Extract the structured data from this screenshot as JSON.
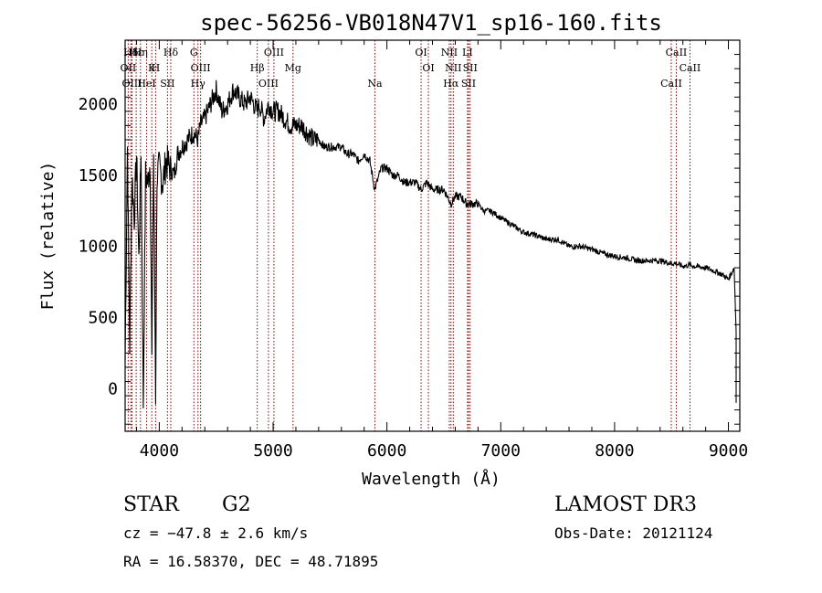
{
  "chart_data": {
    "type": "line",
    "title": "spec-56256-VB018N47V1_sp16-160.fits",
    "xlabel": "Wavelength (Å)",
    "ylabel": "Flux (relative)",
    "xlim": [
      3700,
      9100
    ],
    "ylim": [
      -300,
      2450
    ],
    "x_ticks": [
      4000,
      5000,
      6000,
      7000,
      8000,
      9000
    ],
    "y_ticks": [
      0,
      500,
      1000,
      1500,
      2000
    ],
    "grid": false,
    "series": [
      {
        "name": "flux",
        "x": [
          3700,
          3720,
          3740,
          3760,
          3780,
          3800,
          3820,
          3840,
          3860,
          3880,
          3900,
          3920,
          3935,
          3950,
          3968,
          3980,
          4000,
          4030,
          4060,
          4101,
          4130,
          4160,
          4200,
          4250,
          4300,
          4340,
          4360,
          4400,
          4450,
          4500,
          4550,
          4600,
          4650,
          4700,
          4750,
          4800,
          4861,
          4880,
          4920,
          4960,
          5000,
          5050,
          5100,
          5150,
          5200,
          5250,
          5300,
          5350,
          5400,
          5450,
          5500,
          5550,
          5600,
          5650,
          5700,
          5750,
          5800,
          5850,
          5893,
          5950,
          6000,
          6050,
          6100,
          6150,
          6200,
          6250,
          6300,
          6350,
          6400,
          6450,
          6500,
          6563,
          6600,
          6650,
          6700,
          6750,
          6800,
          6850,
          6900,
          6950,
          7000,
          7100,
          7200,
          7300,
          7400,
          7500,
          7600,
          7700,
          7800,
          7900,
          8000,
          8100,
          8200,
          8300,
          8400,
          8498,
          8542,
          8600,
          8662,
          8700,
          8800,
          8900,
          8950,
          9000,
          9050
        ],
        "y": [
          200,
          1700,
          300,
          1500,
          1200,
          1650,
          900,
          1700,
          -100,
          1500,
          1450,
          1600,
          200,
          1650,
          -50,
          1500,
          1550,
          1450,
          1600,
          1550,
          1500,
          1650,
          1700,
          1750,
          1800,
          1750,
          1850,
          1900,
          2000,
          2100,
          1950,
          2000,
          2100,
          2050,
          2000,
          2050,
          1950,
          2000,
          1900,
          2000,
          1950,
          1950,
          1900,
          1850,
          1850,
          1850,
          1800,
          1750,
          1750,
          1700,
          1700,
          1700,
          1700,
          1650,
          1650,
          1600,
          1650,
          1600,
          1400,
          1550,
          1550,
          1500,
          1500,
          1450,
          1450,
          1450,
          1400,
          1450,
          1400,
          1400,
          1400,
          1300,
          1350,
          1350,
          1300,
          1300,
          1300,
          1250,
          1250,
          1230,
          1200,
          1150,
          1100,
          1080,
          1050,
          1050,
          1000,
          1000,
          980,
          950,
          930,
          920,
          900,
          900,
          900,
          880,
          880,
          860,
          870,
          860,
          850,
          820,
          800,
          770,
          850
        ]
      }
    ],
    "lines": [
      {
        "name": "Hδ",
        "x": 3750
      },
      {
        "name": "OII",
        "x": 3727
      },
      {
        "name": "OIII",
        "x": 3760
      },
      {
        "name": "Hε",
        "x": 3797
      },
      {
        "name": "K",
        "x": 3934
      },
      {
        "name": "HeI",
        "x": 3889
      },
      {
        "name": "Hη",
        "x": 3835
      },
      {
        "name": "H",
        "x": 3968
      },
      {
        "name": "SII",
        "x": 4072
      },
      {
        "name": "Hδ",
        "x": 4101
      },
      {
        "name": "OIII",
        "x": 4363
      },
      {
        "name": "Hγ",
        "x": 4340
      },
      {
        "name": "G",
        "x": 4304
      },
      {
        "name": "Hβ",
        "x": 4861
      },
      {
        "name": "OIII",
        "x": 4959
      },
      {
        "name": "OIII",
        "x": 5007
      },
      {
        "name": "Mg",
        "x": 5175
      },
      {
        "name": "Na",
        "x": 5894
      },
      {
        "name": "OI",
        "x": 6300
      },
      {
        "name": "OI",
        "x": 6364
      },
      {
        "name": "Hα",
        "x": 6563
      },
      {
        "name": "NII",
        "x": 6548
      },
      {
        "name": "NII",
        "x": 6583
      },
      {
        "name": "SII",
        "x": 6717
      },
      {
        "name": "LI",
        "x": 6708
      },
      {
        "name": "SII",
        "x": 6731
      },
      {
        "name": "CaII",
        "x": 8498
      },
      {
        "name": "CaII",
        "x": 8542
      },
      {
        "name": "CaII",
        "x": 8662
      }
    ]
  },
  "info": {
    "object_class": "STAR",
    "subclass": "G2",
    "survey": "LAMOST DR3",
    "cz": "cz = −47.8 ± 2.6 km/s",
    "obs_date": "Obs-Date: 20121124",
    "radec": "RA =  16.58370, DEC =  48.71895"
  },
  "colors": {
    "axis": "#000000",
    "spectrum": "#000000",
    "line_marker": "#8b0000"
  }
}
